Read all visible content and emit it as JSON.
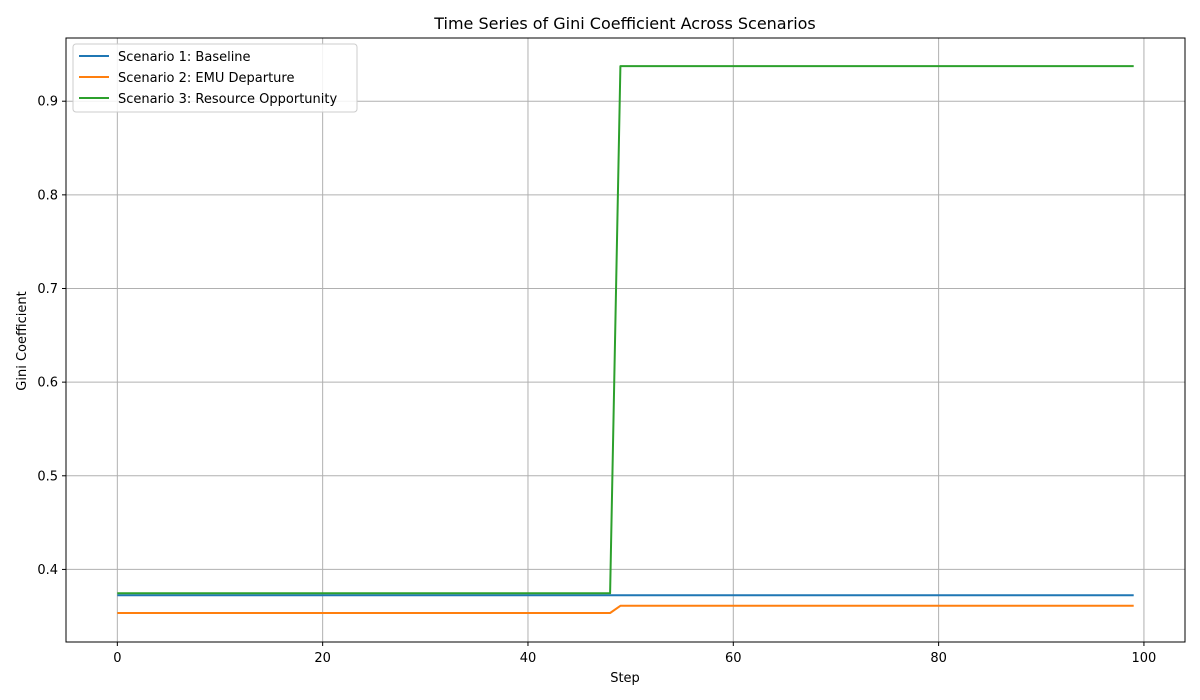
{
  "chart_data": {
    "type": "line",
    "title": "Time Series of Gini Coefficient Across Scenarios",
    "xlabel": "Step",
    "ylabel": "Gini Coefficient",
    "xlim": [
      -5,
      104
    ],
    "ylim": [
      0.3225,
      0.9675
    ],
    "xticks": [
      0,
      20,
      40,
      60,
      80,
      100
    ],
    "yticks": [
      0.4,
      0.5,
      0.6,
      0.7,
      0.8,
      0.9
    ],
    "grid": true,
    "legend_position": "upper-left",
    "series": [
      {
        "name": "Scenario 1: Baseline",
        "color": "#1f77b4",
        "points": [
          [
            0,
            0.3725
          ],
          [
            48,
            0.3725
          ],
          [
            49,
            0.3725
          ],
          [
            99,
            0.3725
          ]
        ]
      },
      {
        "name": "Scenario 2: EMU Departure",
        "color": "#ff7f0e",
        "points": [
          [
            0,
            0.3535
          ],
          [
            48,
            0.3535
          ],
          [
            49,
            0.3612
          ],
          [
            99,
            0.3612
          ]
        ]
      },
      {
        "name": "Scenario 3: Resource Opportunity",
        "color": "#2ca02c",
        "points": [
          [
            0,
            0.3745
          ],
          [
            48,
            0.3745
          ],
          [
            49,
            0.9375
          ],
          [
            99,
            0.9375
          ]
        ]
      }
    ]
  }
}
